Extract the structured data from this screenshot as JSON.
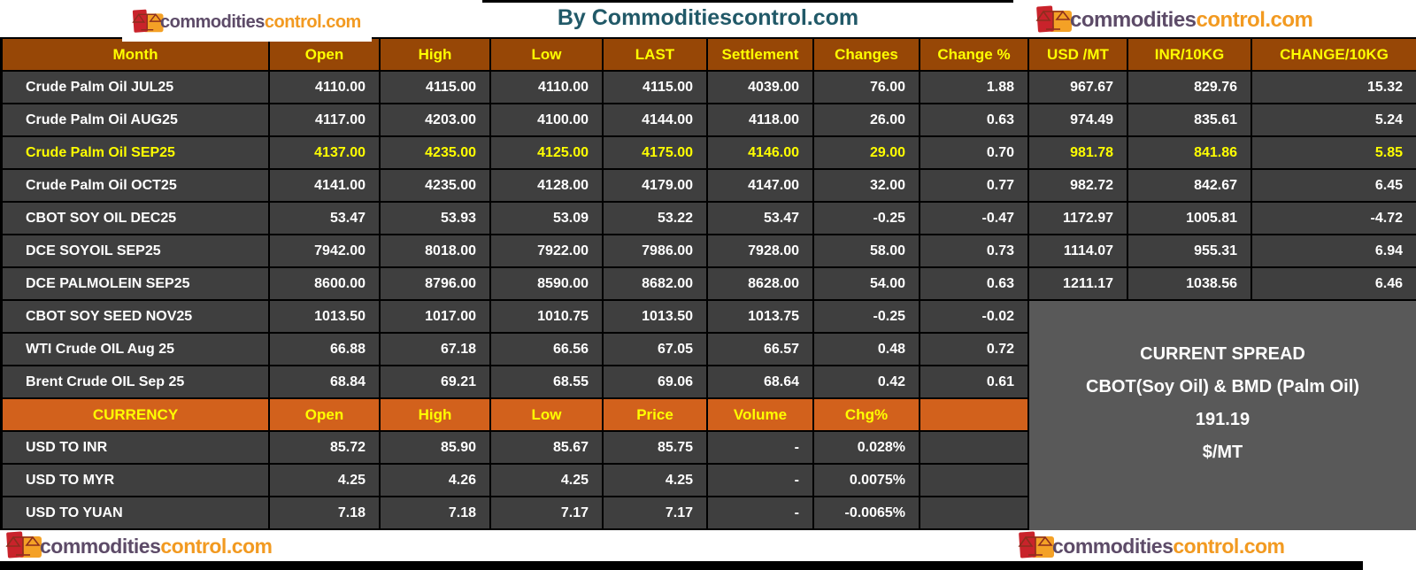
{
  "brand": {
    "name_part1": "commodities",
    "name_part2": "control.com"
  },
  "title": "By Commoditiescontrol.com",
  "main_table": {
    "headers": [
      "Month",
      "Open",
      "High",
      "Low",
      "LAST",
      "Settlement",
      "Changes",
      "Change %",
      "USD /MT",
      "INR/10KG",
      "CHANGE/10KG"
    ],
    "columns": [
      "month",
      "open",
      "high",
      "low",
      "last",
      "settlement",
      "changes",
      "change_pct",
      "usd_mt",
      "inr_10kg",
      "change_10kg"
    ],
    "rows": [
      {
        "month": "Crude Palm Oil JUL25",
        "open": "4110.00",
        "high": "4115.00",
        "low": "4110.00",
        "last": "4115.00",
        "settlement": "4039.00",
        "changes": "76.00",
        "change_pct": "1.88",
        "usd_mt": "967.67",
        "inr_10kg": "829.76",
        "change_10kg": "15.32",
        "highlight": false
      },
      {
        "month": "Crude Palm Oil AUG25",
        "open": "4117.00",
        "high": "4203.00",
        "low": "4100.00",
        "last": "4144.00",
        "settlement": "4118.00",
        "changes": "26.00",
        "change_pct": "0.63",
        "usd_mt": "974.49",
        "inr_10kg": "835.61",
        "change_10kg": "5.24",
        "highlight": false
      },
      {
        "month": "Crude Palm Oil SEP25",
        "open": "4137.00",
        "high": "4235.00",
        "low": "4125.00",
        "last": "4175.00",
        "settlement": "4146.00",
        "changes": "29.00",
        "change_pct": "0.70",
        "usd_mt": "981.78",
        "inr_10kg": "841.86",
        "change_10kg": "5.85",
        "highlight": true
      },
      {
        "month": "Crude Palm Oil OCT25",
        "open": "4141.00",
        "high": "4235.00",
        "low": "4128.00",
        "last": "4179.00",
        "settlement": "4147.00",
        "changes": "32.00",
        "change_pct": "0.77",
        "usd_mt": "982.72",
        "inr_10kg": "842.67",
        "change_10kg": "6.45",
        "highlight": false
      },
      {
        "month": "CBOT SOY OIL DEC25",
        "open": "53.47",
        "high": "53.93",
        "low": "53.09",
        "last": "53.22",
        "settlement": "53.47",
        "changes": "-0.25",
        "change_pct": "-0.47",
        "usd_mt": "1172.97",
        "inr_10kg": "1005.81",
        "change_10kg": "-4.72",
        "highlight": false
      },
      {
        "month": "DCE SOYOIL SEP25",
        "open": "7942.00",
        "high": "8018.00",
        "low": "7922.00",
        "last": "7986.00",
        "settlement": "7928.00",
        "changes": "58.00",
        "change_pct": "0.73",
        "usd_mt": "1114.07",
        "inr_10kg": "955.31",
        "change_10kg": "6.94",
        "highlight": false
      },
      {
        "month": "DCE PALMOLEIN SEP25",
        "open": "8600.00",
        "high": "8796.00",
        "low": "8590.00",
        "last": "8682.00",
        "settlement": "8628.00",
        "changes": "54.00",
        "change_pct": "0.63",
        "usd_mt": "1211.17",
        "inr_10kg": "1038.56",
        "change_10kg": "6.46",
        "highlight": false
      },
      {
        "month": "CBOT SOY SEED NOV25",
        "open": "1013.50",
        "high": "1017.00",
        "low": "1010.75",
        "last": "1013.50",
        "settlement": "1013.75",
        "changes": "-0.25",
        "change_pct": "-0.02",
        "usd_mt": null,
        "inr_10kg": null,
        "change_10kg": null,
        "highlight": false
      },
      {
        "month": "WTI Crude OIL Aug 25",
        "open": "66.88",
        "high": "67.18",
        "low": "66.56",
        "last": "67.05",
        "settlement": "66.57",
        "changes": "0.48",
        "change_pct": "0.72",
        "usd_mt": null,
        "inr_10kg": null,
        "change_10kg": null,
        "highlight": false
      },
      {
        "month": "Brent Crude OIL Sep 25",
        "open": "68.84",
        "high": "69.21",
        "low": "68.55",
        "last": "69.06",
        "settlement": "68.64",
        "changes": "0.42",
        "change_pct": "0.61",
        "usd_mt": null,
        "inr_10kg": null,
        "change_10kg": null,
        "highlight": false
      }
    ]
  },
  "currency_table": {
    "headers": [
      "CURRENCY",
      "Open",
      "High",
      "Low",
      "Price",
      "Volume",
      "Chg%"
    ],
    "columns": [
      "name",
      "open",
      "high",
      "low",
      "price",
      "volume",
      "chg_pct"
    ],
    "rows": [
      {
        "name": "USD TO INR",
        "open": "85.72",
        "high": "85.90",
        "low": "85.67",
        "price": "85.75",
        "volume": "-",
        "chg_pct": "0.028%"
      },
      {
        "name": "USD TO MYR",
        "open": "4.25",
        "high": "4.26",
        "low": "4.25",
        "price": "4.25",
        "volume": "-",
        "chg_pct": "0.0075%"
      },
      {
        "name": "USD TO YUAN",
        "open": "7.18",
        "high": "7.18",
        "low": "7.17",
        "price": "7.17",
        "volume": "-",
        "chg_pct": "-0.0065%"
      }
    ]
  },
  "spread_box": {
    "line1": "CURRENT SPREAD",
    "line2": "CBOT(Soy Oil) & BMD (Palm Oil)",
    "value": "191.19",
    "unit": "$/MT"
  },
  "colors": {
    "header_brown": "#974706",
    "currency_orange": "#D2611C",
    "row_gray": "#3F3F3F",
    "spread_gray": "#595959",
    "highlight_yellow": "#FFFF00",
    "title_teal": "#215968",
    "logo_purple": "#5D4B68",
    "logo_orange": "#F29A21",
    "icon_red": "#C9232B",
    "icon_orange": "#F4A126",
    "border_black": "#000000"
  }
}
